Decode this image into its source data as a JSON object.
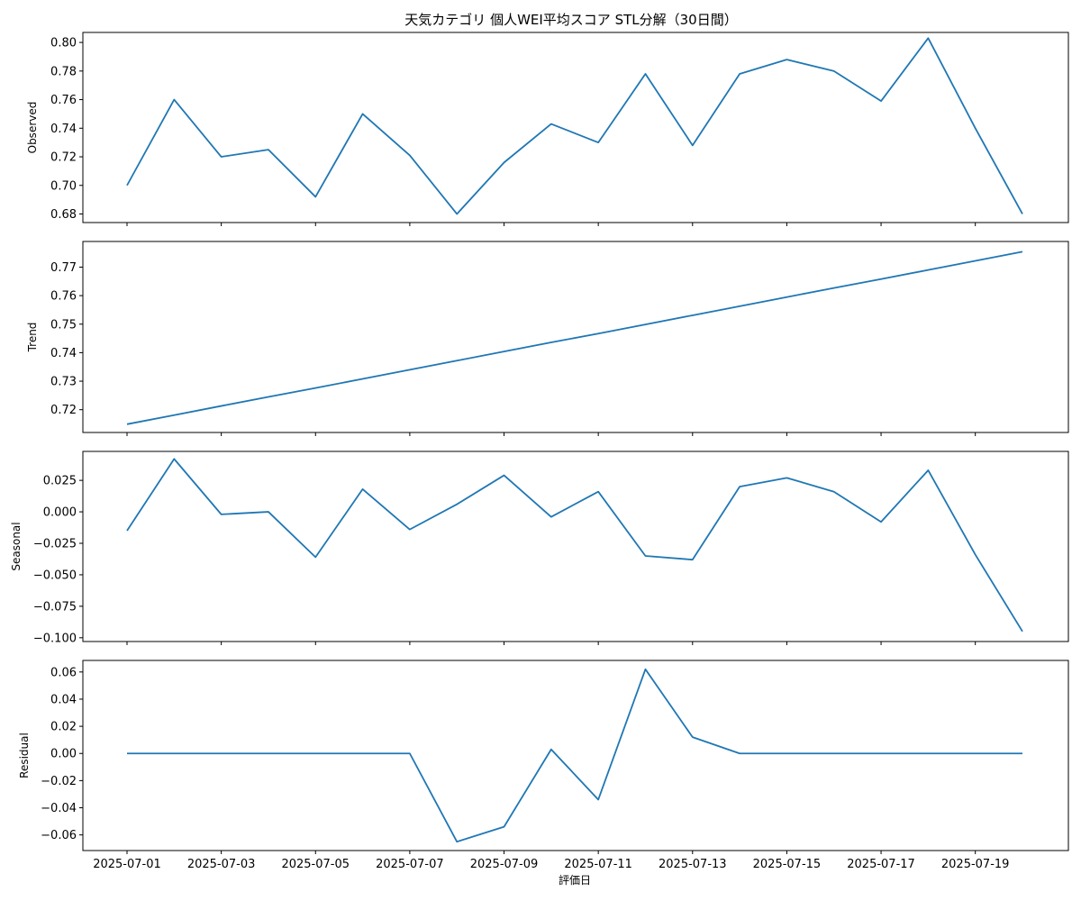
{
  "chart_data": {
    "type": "line",
    "title": "天気カテゴリ 個人WEI平均スコア STL分解（30日間）",
    "xlabel": "評価日",
    "x": [
      "2025-07-01",
      "2025-07-02",
      "2025-07-03",
      "2025-07-04",
      "2025-07-05",
      "2025-07-06",
      "2025-07-07",
      "2025-07-08",
      "2025-07-09",
      "2025-07-10",
      "2025-07-11",
      "2025-07-12",
      "2025-07-13",
      "2025-07-14",
      "2025-07-15",
      "2025-07-16",
      "2025-07-17",
      "2025-07-18",
      "2025-07-19",
      "2025-07-20"
    ],
    "x_tick_labels": [
      "2025-07-01",
      "2025-07-03",
      "2025-07-05",
      "2025-07-07",
      "2025-07-09",
      "2025-07-11",
      "2025-07-13",
      "2025-07-15",
      "2025-07-17",
      "2025-07-19"
    ],
    "grid": false,
    "color": "#1f77b4",
    "panels": [
      {
        "ylabel": "Observed",
        "ylim": [
          0.674,
          0.807
        ],
        "yticks": [
          "0.68",
          "0.70",
          "0.72",
          "0.74",
          "0.76",
          "0.78",
          "0.80"
        ],
        "values": [
          0.7,
          0.76,
          0.72,
          0.725,
          0.692,
          0.75,
          0.721,
          0.68,
          0.716,
          0.743,
          0.73,
          0.778,
          0.728,
          0.778,
          0.788,
          0.78,
          0.759,
          0.803,
          0.74,
          0.68
        ]
      },
      {
        "ylabel": "Trend",
        "ylim": [
          0.712,
          0.779
        ],
        "yticks": [
          "0.72",
          "0.73",
          "0.74",
          "0.75",
          "0.76",
          "0.77"
        ],
        "values": [
          0.7149,
          0.7181,
          0.7213,
          0.7245,
          0.7276,
          0.7308,
          0.734,
          0.7372,
          0.7404,
          0.7436,
          0.7467,
          0.7499,
          0.7531,
          0.7563,
          0.7595,
          0.7627,
          0.7658,
          0.769,
          0.7722,
          0.7754
        ]
      },
      {
        "ylabel": "Seasonal",
        "ylim": [
          -0.103,
          0.048
        ],
        "yticks": [
          "0.025",
          "0.000",
          "−0.025",
          "−0.050",
          "−0.075",
          "−0.100"
        ],
        "values": [
          -0.015,
          0.042,
          -0.002,
          0.0,
          -0.036,
          0.018,
          -0.014,
          0.006,
          0.029,
          -0.004,
          0.016,
          -0.035,
          -0.038,
          0.02,
          0.027,
          0.016,
          -0.008,
          0.033,
          -0.034,
          -0.095
        ]
      },
      {
        "ylabel": "Residual",
        "ylim": [
          -0.0715,
          0.0685
        ],
        "yticks": [
          "0.06",
          "0.04",
          "0.02",
          "0.00",
          "−0.02",
          "−0.04",
          "−0.06"
        ],
        "values": [
          0,
          0,
          0,
          0,
          0,
          0,
          0,
          -0.065,
          -0.054,
          0.003,
          -0.034,
          0.062,
          0.012,
          0,
          0,
          0,
          0,
          0,
          0,
          0
        ]
      }
    ]
  }
}
